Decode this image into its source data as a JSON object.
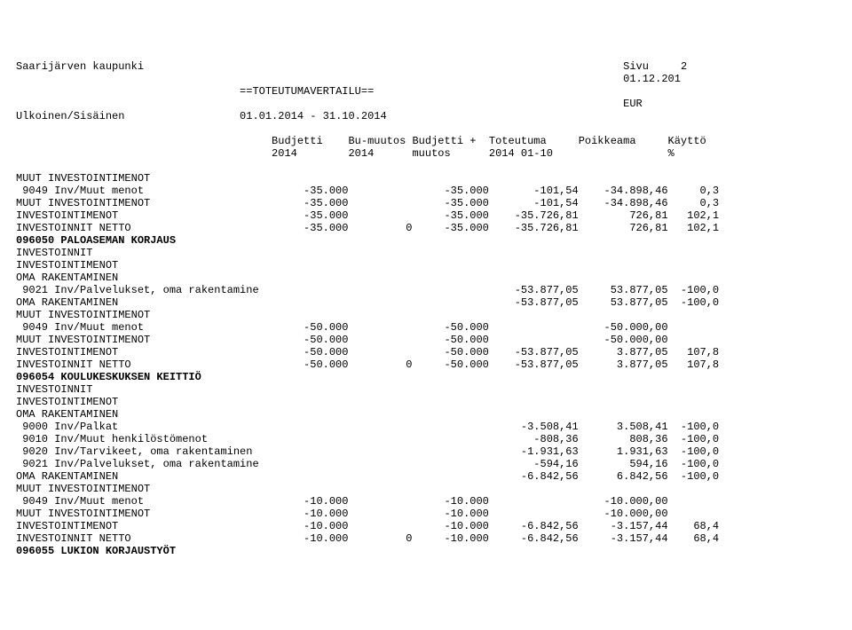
{
  "header": {
    "org": "Saarijärven kaupunki",
    "page_label": "Sivu",
    "page_num": "2",
    "date": "01.12.201",
    "title": "==TOTEUTUMAVERTAILU==",
    "currency": "EUR",
    "scope": "Ulkoinen/Sisäinen",
    "period": "01.01.2014 - 31.10.2014"
  },
  "cols": {
    "c1": "Budjetti",
    "c2": "Bu-muutos",
    "c3": "Budjetti +",
    "c4": "Toteutuma",
    "c5": "Poikkeama",
    "c6": "Käyttö",
    "s1": "2014",
    "s2": "2014",
    "s3": "muutos",
    "s4": "2014 01-10",
    "s6": "%"
  },
  "sections": [
    {
      "rows": [
        {
          "label": "MUUT INVESTOINTIMENOT",
          "b": "",
          "m": "",
          "bm": "",
          "t": "",
          "p": "",
          "k": ""
        },
        {
          "label": " 9049 Inv/Muut menot",
          "b": "-35.000",
          "m": "",
          "bm": "-35.000",
          "t": "-101,54",
          "p": "-34.898,46",
          "k": "0,3"
        },
        {
          "label": "MUUT INVESTOINTIMENOT",
          "b": "-35.000",
          "m": "",
          "bm": "-35.000",
          "t": "-101,54",
          "p": "-34.898,46",
          "k": "0,3"
        },
        {
          "label": "INVESTOINTIMENOT",
          "b": "-35.000",
          "m": "",
          "bm": "-35.000",
          "t": "-35.726,81",
          "p": "726,81",
          "k": "102,1"
        },
        {
          "label": "INVESTOINNIT NETTO",
          "b": "-35.000",
          "m": "0",
          "bm": "-35.000",
          "t": "-35.726,81",
          "p": "726,81",
          "k": "102,1"
        }
      ]
    },
    {
      "heading": "096050 PALOASEMAN KORJAUS",
      "rows": [
        {
          "label": "INVESTOINNIT",
          "b": "",
          "m": "",
          "bm": "",
          "t": "",
          "p": "",
          "k": ""
        },
        {
          "label": "INVESTOINTIMENOT",
          "b": "",
          "m": "",
          "bm": "",
          "t": "",
          "p": "",
          "k": ""
        },
        {
          "label": "OMA RAKENTAMINEN",
          "b": "",
          "m": "",
          "bm": "",
          "t": "",
          "p": "",
          "k": ""
        },
        {
          "label": " 9021 Inv/Palvelukset, oma rakentamine",
          "b": "",
          "m": "",
          "bm": "",
          "t": "-53.877,05",
          "p": "53.877,05",
          "k": "-100,0"
        },
        {
          "label": "OMA RAKENTAMINEN",
          "b": "",
          "m": "",
          "bm": "",
          "t": "-53.877,05",
          "p": "53.877,05",
          "k": "-100,0"
        },
        {
          "label": "MUUT INVESTOINTIMENOT",
          "b": "",
          "m": "",
          "bm": "",
          "t": "",
          "p": "",
          "k": ""
        },
        {
          "label": " 9049 Inv/Muut menot",
          "b": "-50.000",
          "m": "",
          "bm": "-50.000",
          "t": "",
          "p": "-50.000,00",
          "k": ""
        },
        {
          "label": "MUUT INVESTOINTIMENOT",
          "b": "-50.000",
          "m": "",
          "bm": "-50.000",
          "t": "",
          "p": "-50.000,00",
          "k": ""
        },
        {
          "label": "INVESTOINTIMENOT",
          "b": "-50.000",
          "m": "",
          "bm": "-50.000",
          "t": "-53.877,05",
          "p": "3.877,05",
          "k": "107,8"
        },
        {
          "label": "INVESTOINNIT NETTO",
          "b": "-50.000",
          "m": "0",
          "bm": "-50.000",
          "t": "-53.877,05",
          "p": "3.877,05",
          "k": "107,8"
        }
      ]
    },
    {
      "heading": "096054 KOULUKESKUKSEN KEITTIÖ",
      "rows": [
        {
          "label": "INVESTOINNIT",
          "b": "",
          "m": "",
          "bm": "",
          "t": "",
          "p": "",
          "k": ""
        },
        {
          "label": "INVESTOINTIMENOT",
          "b": "",
          "m": "",
          "bm": "",
          "t": "",
          "p": "",
          "k": ""
        },
        {
          "label": "OMA RAKENTAMINEN",
          "b": "",
          "m": "",
          "bm": "",
          "t": "",
          "p": "",
          "k": ""
        },
        {
          "label": " 9000 Inv/Palkat",
          "b": "",
          "m": "",
          "bm": "",
          "t": "-3.508,41",
          "p": "3.508,41",
          "k": "-100,0"
        },
        {
          "label": " 9010 Inv/Muut henkilöstömenot",
          "b": "",
          "m": "",
          "bm": "",
          "t": "-808,36",
          "p": "808,36",
          "k": "-100,0"
        },
        {
          "label": " 9020 Inv/Tarvikeet, oma rakentaminen",
          "b": "",
          "m": "",
          "bm": "",
          "t": "-1.931,63",
          "p": "1.931,63",
          "k": "-100,0"
        },
        {
          "label": " 9021 Inv/Palvelukset, oma rakentamine",
          "b": "",
          "m": "",
          "bm": "",
          "t": "-594,16",
          "p": "594,16",
          "k": "-100,0"
        },
        {
          "label": "OMA RAKENTAMINEN",
          "b": "",
          "m": "",
          "bm": "",
          "t": "-6.842,56",
          "p": "6.842,56",
          "k": "-100,0"
        },
        {
          "label": "MUUT INVESTOINTIMENOT",
          "b": "",
          "m": "",
          "bm": "",
          "t": "",
          "p": "",
          "k": ""
        },
        {
          "label": " 9049 Inv/Muut menot",
          "b": "-10.000",
          "m": "",
          "bm": "-10.000",
          "t": "",
          "p": "-10.000,00",
          "k": ""
        },
        {
          "label": "MUUT INVESTOINTIMENOT",
          "b": "-10.000",
          "m": "",
          "bm": "-10.000",
          "t": "",
          "p": "-10.000,00",
          "k": ""
        },
        {
          "label": "INVESTOINTIMENOT",
          "b": "-10.000",
          "m": "",
          "bm": "-10.000",
          "t": "-6.842,56",
          "p": "-3.157,44",
          "k": "68,4"
        },
        {
          "label": "INVESTOINNIT NETTO",
          "b": "-10.000",
          "m": "0",
          "bm": "-10.000",
          "t": "-6.842,56",
          "p": "-3.157,44",
          "k": "68,4"
        }
      ]
    },
    {
      "heading": "096055 LUKION KORJAUSTYÖT",
      "rows": []
    }
  ],
  "layout": {
    "label_w": 40,
    "b_w": 12,
    "m_w": 10,
    "bm_w": 12,
    "t_w": 14,
    "p_w": 14,
    "k_w": 8
  }
}
